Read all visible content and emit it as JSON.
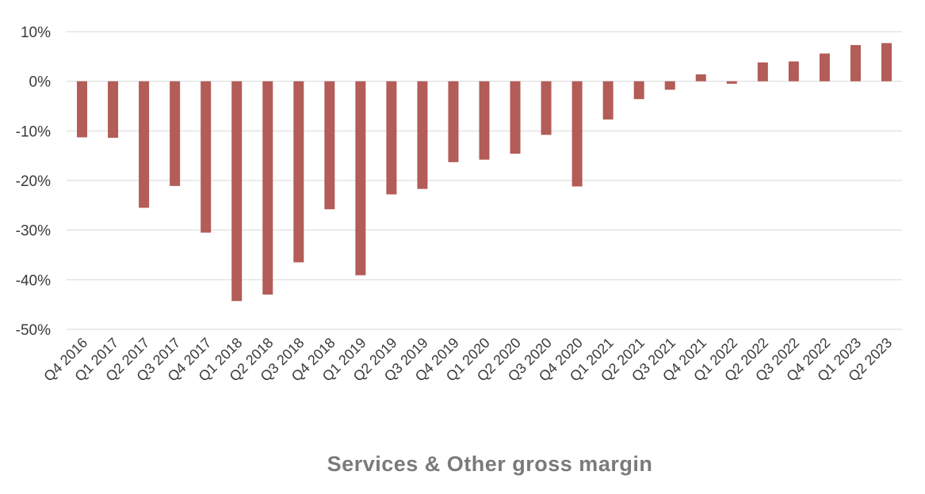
{
  "chart_data": {
    "type": "bar",
    "title": "Services & Other gross margin",
    "xlabel": "",
    "ylabel": "",
    "ylim": [
      -50,
      10
    ],
    "yticks": [
      10,
      0,
      -10,
      -20,
      -30,
      -40,
      -50
    ],
    "ytick_labels": [
      "10%",
      "0%",
      "-10%",
      "-20%",
      "-30%",
      "-40%",
      "-50%"
    ],
    "grid": true,
    "legend": "none",
    "categories": [
      "Q4 2016",
      "Q1 2017",
      "Q2 2017",
      "Q3 2017",
      "Q4 2017",
      "Q1 2018",
      "Q2 2018",
      "Q3 2018",
      "Q4 2018",
      "Q1 2019",
      "Q2 2019",
      "Q3 2019",
      "Q4 2019",
      "Q1 2020",
      "Q2 2020",
      "Q3 2020",
      "Q4 2020",
      "Q1 2021",
      "Q2 2021",
      "Q3 2021",
      "Q4 2021",
      "Q1 2022",
      "Q2 2022",
      "Q3 2022",
      "Q4 2022",
      "Q1 2023",
      "Q2 2023"
    ],
    "values": [
      -11.3,
      -11.4,
      -25.5,
      -21.1,
      -30.5,
      -44.3,
      -43.0,
      -36.5,
      -25.8,
      -39.1,
      -22.8,
      -21.7,
      -16.3,
      -15.8,
      -14.6,
      -10.8,
      -21.2,
      -7.7,
      -3.6,
      -1.7,
      1.4,
      -0.5,
      3.8,
      4.0,
      5.6,
      7.3,
      7.7
    ],
    "bar_color": "#b35c58",
    "grid_color": "#d9d9d9"
  }
}
